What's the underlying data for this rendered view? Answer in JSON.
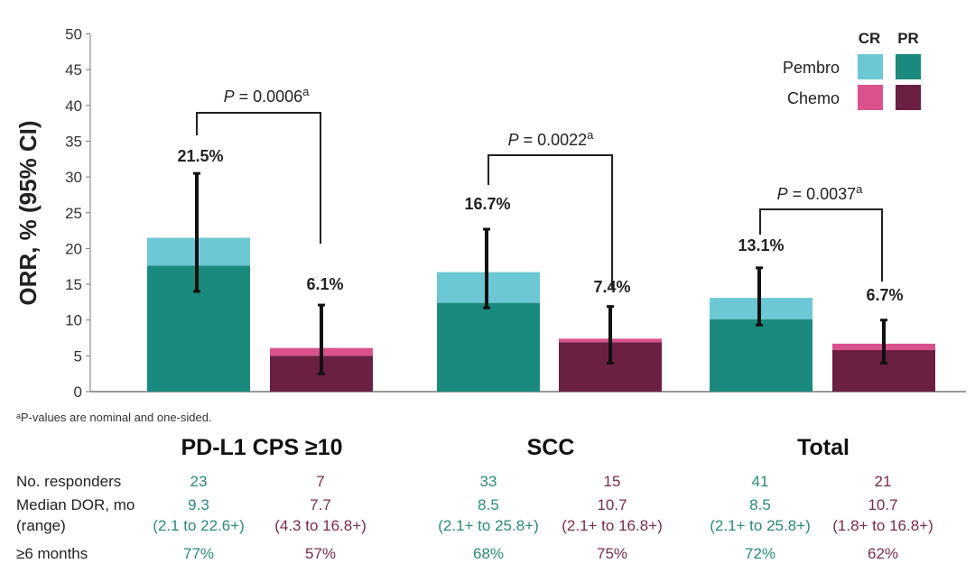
{
  "chart_data": {
    "type": "bar",
    "stacked": true,
    "ylabel": "ORR, % (95% CI)",
    "ylim": [
      0,
      50
    ],
    "yticks": [
      0,
      5,
      10,
      15,
      20,
      25,
      30,
      35,
      40,
      45,
      50
    ],
    "categories": [
      "PD-L1 CPS ≥10",
      "SCC",
      "Total"
    ],
    "legend": {
      "position": "top-right",
      "columns": [
        "CR",
        "PR"
      ],
      "rows": [
        "Pembro",
        "Chemo"
      ]
    },
    "series": [
      {
        "name": "Pembro",
        "total": [
          21.5,
          16.7,
          13.1
        ],
        "PR": [
          17.6,
          12.4,
          10.1
        ],
        "CR": [
          3.9,
          4.3,
          3.0
        ],
        "ci_low": [
          14.0,
          11.7,
          9.3
        ],
        "ci_high": [
          30.5,
          22.7,
          17.3
        ],
        "labels": [
          "21.5%",
          "16.7%",
          "13.1%"
        ]
      },
      {
        "name": "Chemo",
        "total": [
          6.1,
          7.4,
          6.7
        ],
        "PR": [
          5.0,
          6.9,
          5.8
        ],
        "CR": [
          1.1,
          0.5,
          0.9
        ],
        "ci_low": [
          2.5,
          4.0,
          4.0
        ],
        "ci_high": [
          12.1,
          11.9,
          10.0
        ],
        "labels": [
          "6.1%",
          "7.4%",
          "6.7%"
        ]
      }
    ],
    "pvalues": [
      {
        "text": "P = 0.0006",
        "sup": "a"
      },
      {
        "text": "P = 0.0022",
        "sup": "a"
      },
      {
        "text": "P = 0.0037",
        "sup": "a"
      }
    ],
    "colors": {
      "pembro_cr": "#6cc8d4",
      "pembro_pr": "#1b8a7e",
      "chemo_cr": "#d9528c",
      "chemo_pr": "#6b1f42"
    }
  },
  "footnote": "ᵃP-values are nominal and one-sided.",
  "table": {
    "row_labels": [
      "No. responders",
      "Median DOR, mo",
      "(range)",
      "≥6 months"
    ],
    "groups": [
      {
        "name": "PD-L1 CPS ≥10",
        "pembro": {
          "responders": "23",
          "dor": "9.3",
          "range": "(2.1 to 22.6+)",
          "six": "77%"
        },
        "chemo": {
          "responders": "7",
          "dor": "7.7",
          "range": "(4.3 to 16.8+)",
          "six": "57%"
        }
      },
      {
        "name": "SCC",
        "pembro": {
          "responders": "33",
          "dor": "8.5",
          "range": "(2.1+ to 25.8+)",
          "six": "68%"
        },
        "chemo": {
          "responders": "15",
          "dor": "10.7",
          "range": "(2.1+ to 16.8+)",
          "six": "75%"
        }
      },
      {
        "name": "Total",
        "pembro": {
          "responders": "41",
          "dor": "8.5",
          "range": "(2.1+ to 25.8+)",
          "six": "72%"
        },
        "chemo": {
          "responders": "21",
          "dor": "10.7",
          "range": "(1.8+ to 16.8+)",
          "six": "62%"
        }
      }
    ]
  }
}
